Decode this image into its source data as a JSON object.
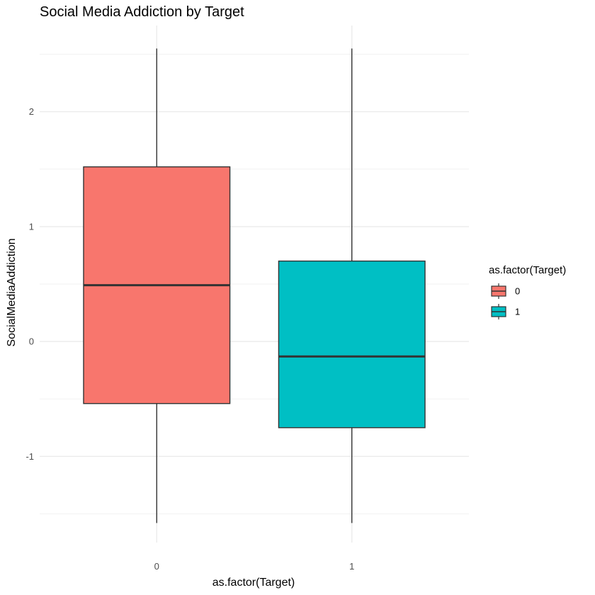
{
  "chart_data": {
    "type": "boxplot",
    "title": "Social Media Addiction by Target",
    "xlabel": "as.factor(Target)",
    "ylabel": "SocialMediaAddiction",
    "categories": [
      "0",
      "1"
    ],
    "boxes": [
      {
        "name": "0",
        "whisker_low": -1.58,
        "q1": -0.54,
        "median": 0.49,
        "q3": 1.52,
        "whisker_high": 2.55,
        "color": "#F8766D"
      },
      {
        "name": "1",
        "whisker_low": -1.58,
        "q1": -0.75,
        "median": -0.13,
        "q3": 0.7,
        "whisker_high": 2.55,
        "color": "#00BFC4"
      }
    ],
    "yticks": [
      -1,
      0,
      1,
      2
    ],
    "ytick_labels": [
      "-1",
      "0",
      "1",
      "2"
    ],
    "ylim": [
      -1.75,
      2.75
    ],
    "grid": true,
    "legend": {
      "title": "as.factor(Target)",
      "position": "right",
      "items": [
        {
          "label": "0",
          "color": "#F8766D"
        },
        {
          "label": "1",
          "color": "#00BFC4"
        }
      ]
    }
  }
}
